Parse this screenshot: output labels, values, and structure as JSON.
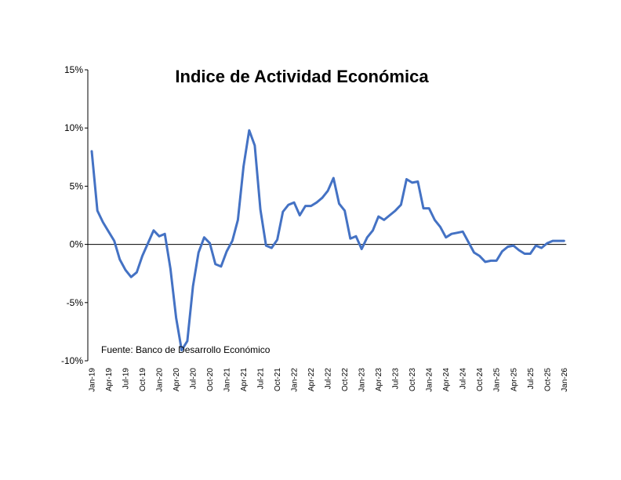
{
  "chart_data": {
    "type": "line",
    "title": "Indice de Actividad Económica",
    "source_note": "Fuente: Banco de Desarrollo Económico",
    "xlabel": "",
    "ylabel": "",
    "ylim": [
      -10,
      15
    ],
    "y_ticks": [
      15,
      10,
      5,
      0,
      -5,
      -10
    ],
    "y_tick_labels": [
      "15%",
      "10%",
      "5%",
      "0%",
      "-5%",
      "-10%"
    ],
    "x_tick_labels": [
      "Jan-19",
      "Apr-19",
      "Jul-19",
      "Oct-19",
      "Jan-20",
      "Apr-20",
      "Jul-20",
      "Oct-20",
      "Jan-21",
      "Apr-21",
      "Jul-21",
      "Oct-21",
      "Jan-22",
      "Apr-22",
      "Jul-22",
      "Oct-22",
      "Jan-23",
      "Apr-23",
      "Jul-23",
      "Oct-23",
      "Jan-24",
      "Apr-24",
      "Jul-24",
      "Oct-24",
      "Jan-25",
      "Apr-25",
      "Jul-25",
      "Oct-25",
      "Jan-26"
    ],
    "line_color": "#4472C4",
    "series": [
      {
        "name": "Indice de Actividad Económica",
        "x_start": "Jan-19",
        "frequency": "monthly",
        "values": [
          8.0,
          2.9,
          1.9,
          1.1,
          0.3,
          -1.3,
          -2.2,
          -2.8,
          -2.4,
          -1.0,
          0.1,
          1.2,
          0.7,
          0.9,
          -2.1,
          -6.3,
          -9.1,
          -8.3,
          -3.6,
          -0.7,
          0.6,
          0.1,
          -1.7,
          -1.9,
          -0.6,
          0.3,
          2.1,
          6.7,
          9.8,
          8.5,
          3.0,
          -0.1,
          -0.3,
          0.4,
          2.8,
          3.4,
          3.6,
          2.5,
          3.3,
          3.3,
          3.6,
          4.0,
          4.6,
          5.7,
          3.5,
          2.9,
          0.5,
          0.7,
          -0.4,
          0.6,
          1.2,
          2.4,
          2.1,
          2.5,
          2.9,
          3.4,
          5.6,
          5.3,
          5.4,
          3.1,
          3.1,
          2.1,
          1.5,
          0.6,
          0.9,
          1.0,
          1.1,
          0.2,
          -0.7,
          -1.0,
          -1.5,
          -1.4,
          -1.4,
          -0.6,
          -0.2,
          -0.1,
          -0.5,
          -0.8,
          -0.8,
          -0.1,
          -0.3,
          0.1,
          0.3,
          0.3,
          0.3
        ]
      }
    ]
  }
}
